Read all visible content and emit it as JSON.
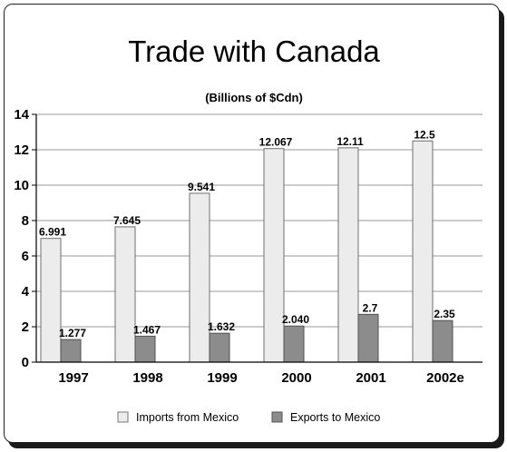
{
  "chart_data": {
    "type": "bar",
    "title": "Trade with Canada",
    "subtitle": "(Billions of $Cdn)",
    "categories": [
      "1997",
      "1998",
      "1999",
      "2000",
      "2001",
      "2002e"
    ],
    "series": [
      {
        "name": "Imports from Mexico",
        "values": [
          6.991,
          7.645,
          9.541,
          12.067,
          12.11,
          12.5
        ],
        "labels": [
          "6.991",
          "7.645",
          "9.541",
          "12.067",
          "12.11",
          "12.5"
        ],
        "color": "#ececec"
      },
      {
        "name": "Exports to Mexico",
        "values": [
          1.277,
          1.467,
          1.632,
          2.04,
          2.7,
          2.35
        ],
        "labels": [
          "1.277",
          "1.467",
          "1.632",
          "2.040",
          "2.7",
          "2.35"
        ],
        "color": "#8c8c8c"
      }
    ],
    "ylim": [
      0,
      14
    ],
    "yticks": [
      "0",
      "2",
      "4",
      "6",
      "8",
      "10",
      "12",
      "14"
    ],
    "grid": true,
    "legend_position": "bottom"
  }
}
